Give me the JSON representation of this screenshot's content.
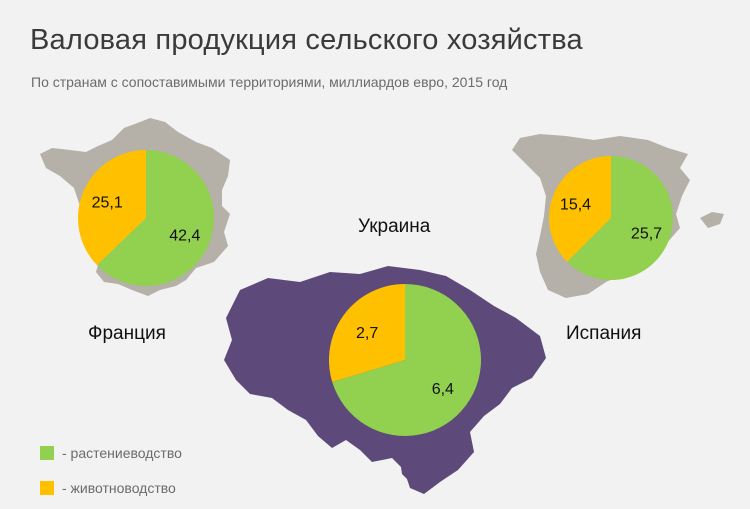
{
  "title": "Валовая продукция сельского хозяйства",
  "subtitle": "По странам с сопоставимыми территориями, миллиардов евро, 2015 год",
  "colors": {
    "plant": "#92d050",
    "animal": "#ffc000",
    "map_gray": "#b5b0a8",
    "map_purple": "#5e4a7a",
    "background": "#f2f2f2"
  },
  "legend": [
    {
      "key": "plant",
      "label": "- растениеводство"
    },
    {
      "key": "animal",
      "label": "- животноводство"
    }
  ],
  "chart_data": [
    {
      "type": "pie",
      "country": "Франция",
      "slices": [
        {
          "key": "plant",
          "value": 42.4,
          "label": "42,4"
        },
        {
          "key": "animal",
          "value": 25.1,
          "label": "25,1"
        }
      ]
    },
    {
      "type": "pie",
      "country": "Украина",
      "slices": [
        {
          "key": "plant",
          "value": 6.4,
          "label": "6,4"
        },
        {
          "key": "animal",
          "value": 2.7,
          "label": "2,7"
        }
      ]
    },
    {
      "type": "pie",
      "country": "Испания",
      "slices": [
        {
          "key": "plant",
          "value": 25.7,
          "label": "25,7"
        },
        {
          "key": "animal",
          "value": 15.4,
          "label": "15,4"
        }
      ]
    }
  ]
}
